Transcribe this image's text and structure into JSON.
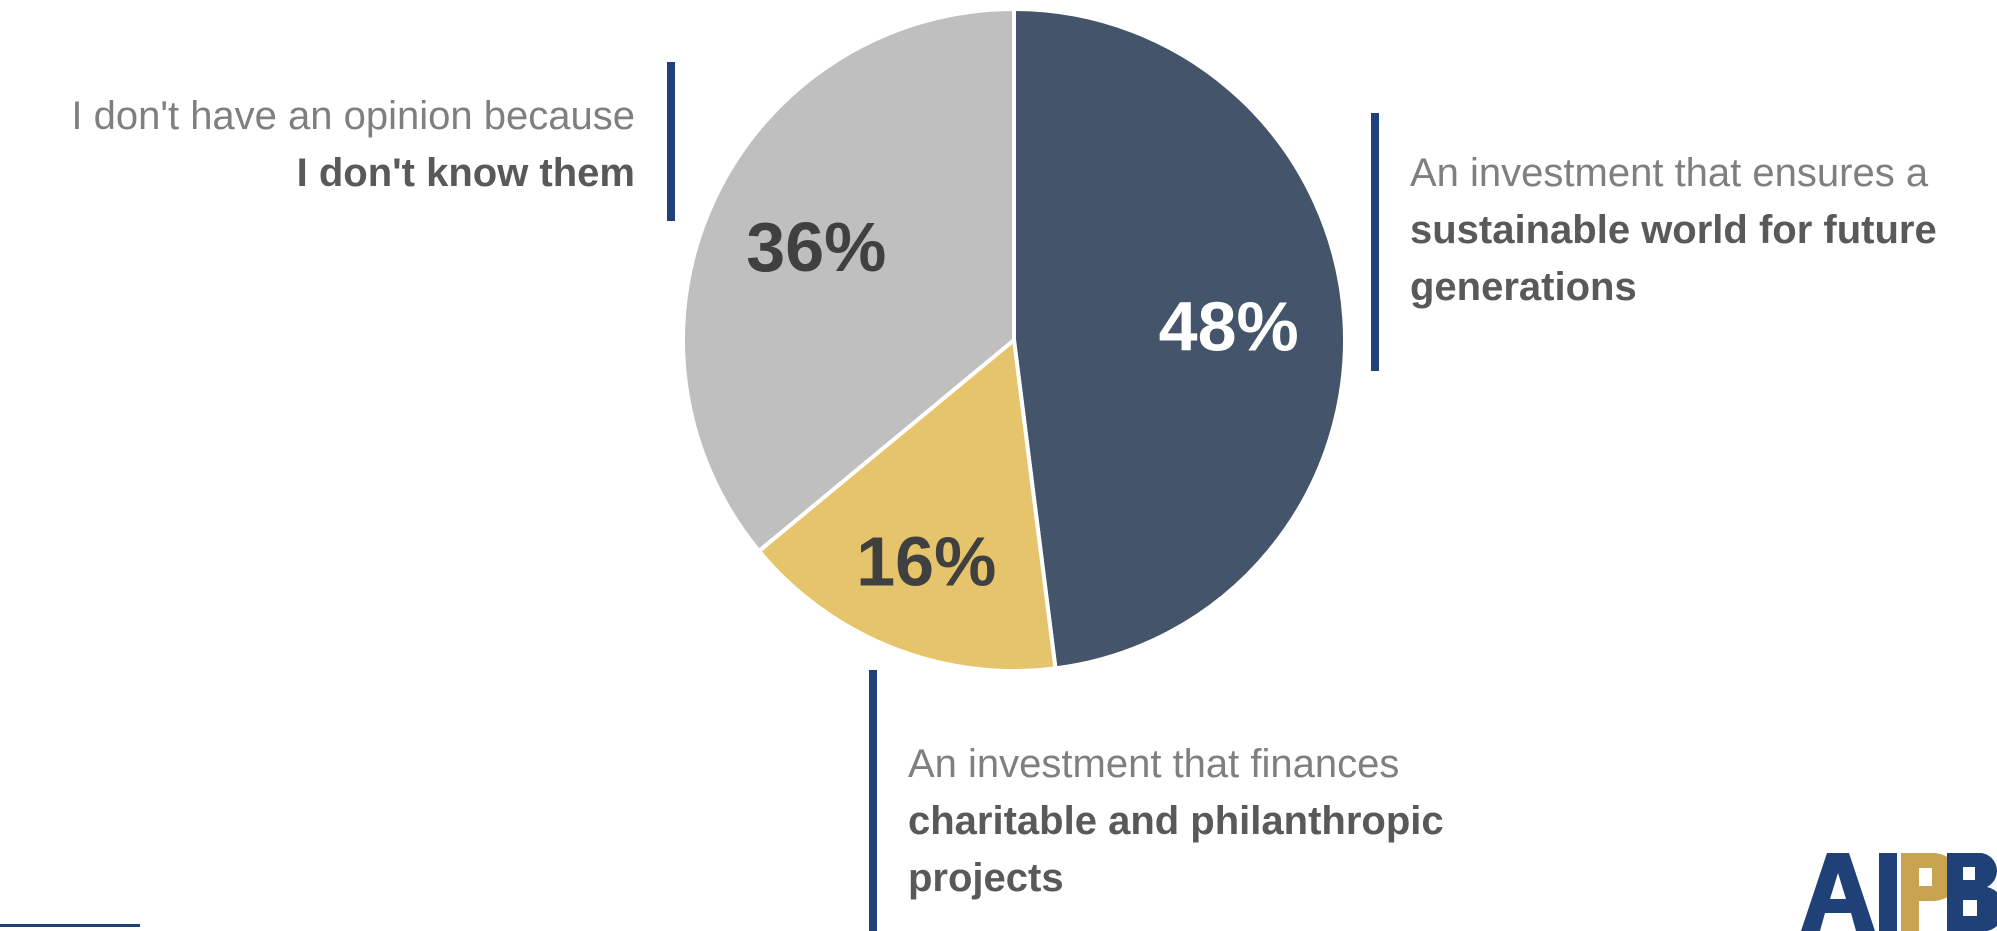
{
  "chart_data": {
    "type": "pie",
    "series": [
      {
        "values": [
          48,
          16,
          36
        ],
        "labels": [
          "48%",
          "16%",
          "36%"
        ],
        "colors": [
          "#44546a",
          "#e5c46b",
          "#bfbfbf"
        ],
        "label_colors": [
          "#ffffff",
          "#404040",
          "#404040"
        ]
      }
    ],
    "start_angle_deg": 0,
    "direction": "clockwise"
  },
  "callouts": {
    "left": {
      "normal": "I don't have an opinion because",
      "bold": "I don't know them"
    },
    "right": {
      "normal": "An investment that ensures a",
      "bold": "sustainable world for future generations"
    },
    "bottom": {
      "normal": "An investment that finances",
      "bold": "charitable and philanthropic projects"
    }
  },
  "logo": {
    "text": "AIPB",
    "colors": {
      "primary": "#1f4178",
      "accent": "#c9a450"
    }
  },
  "colors": {
    "accent_bar": "#1f4178"
  }
}
